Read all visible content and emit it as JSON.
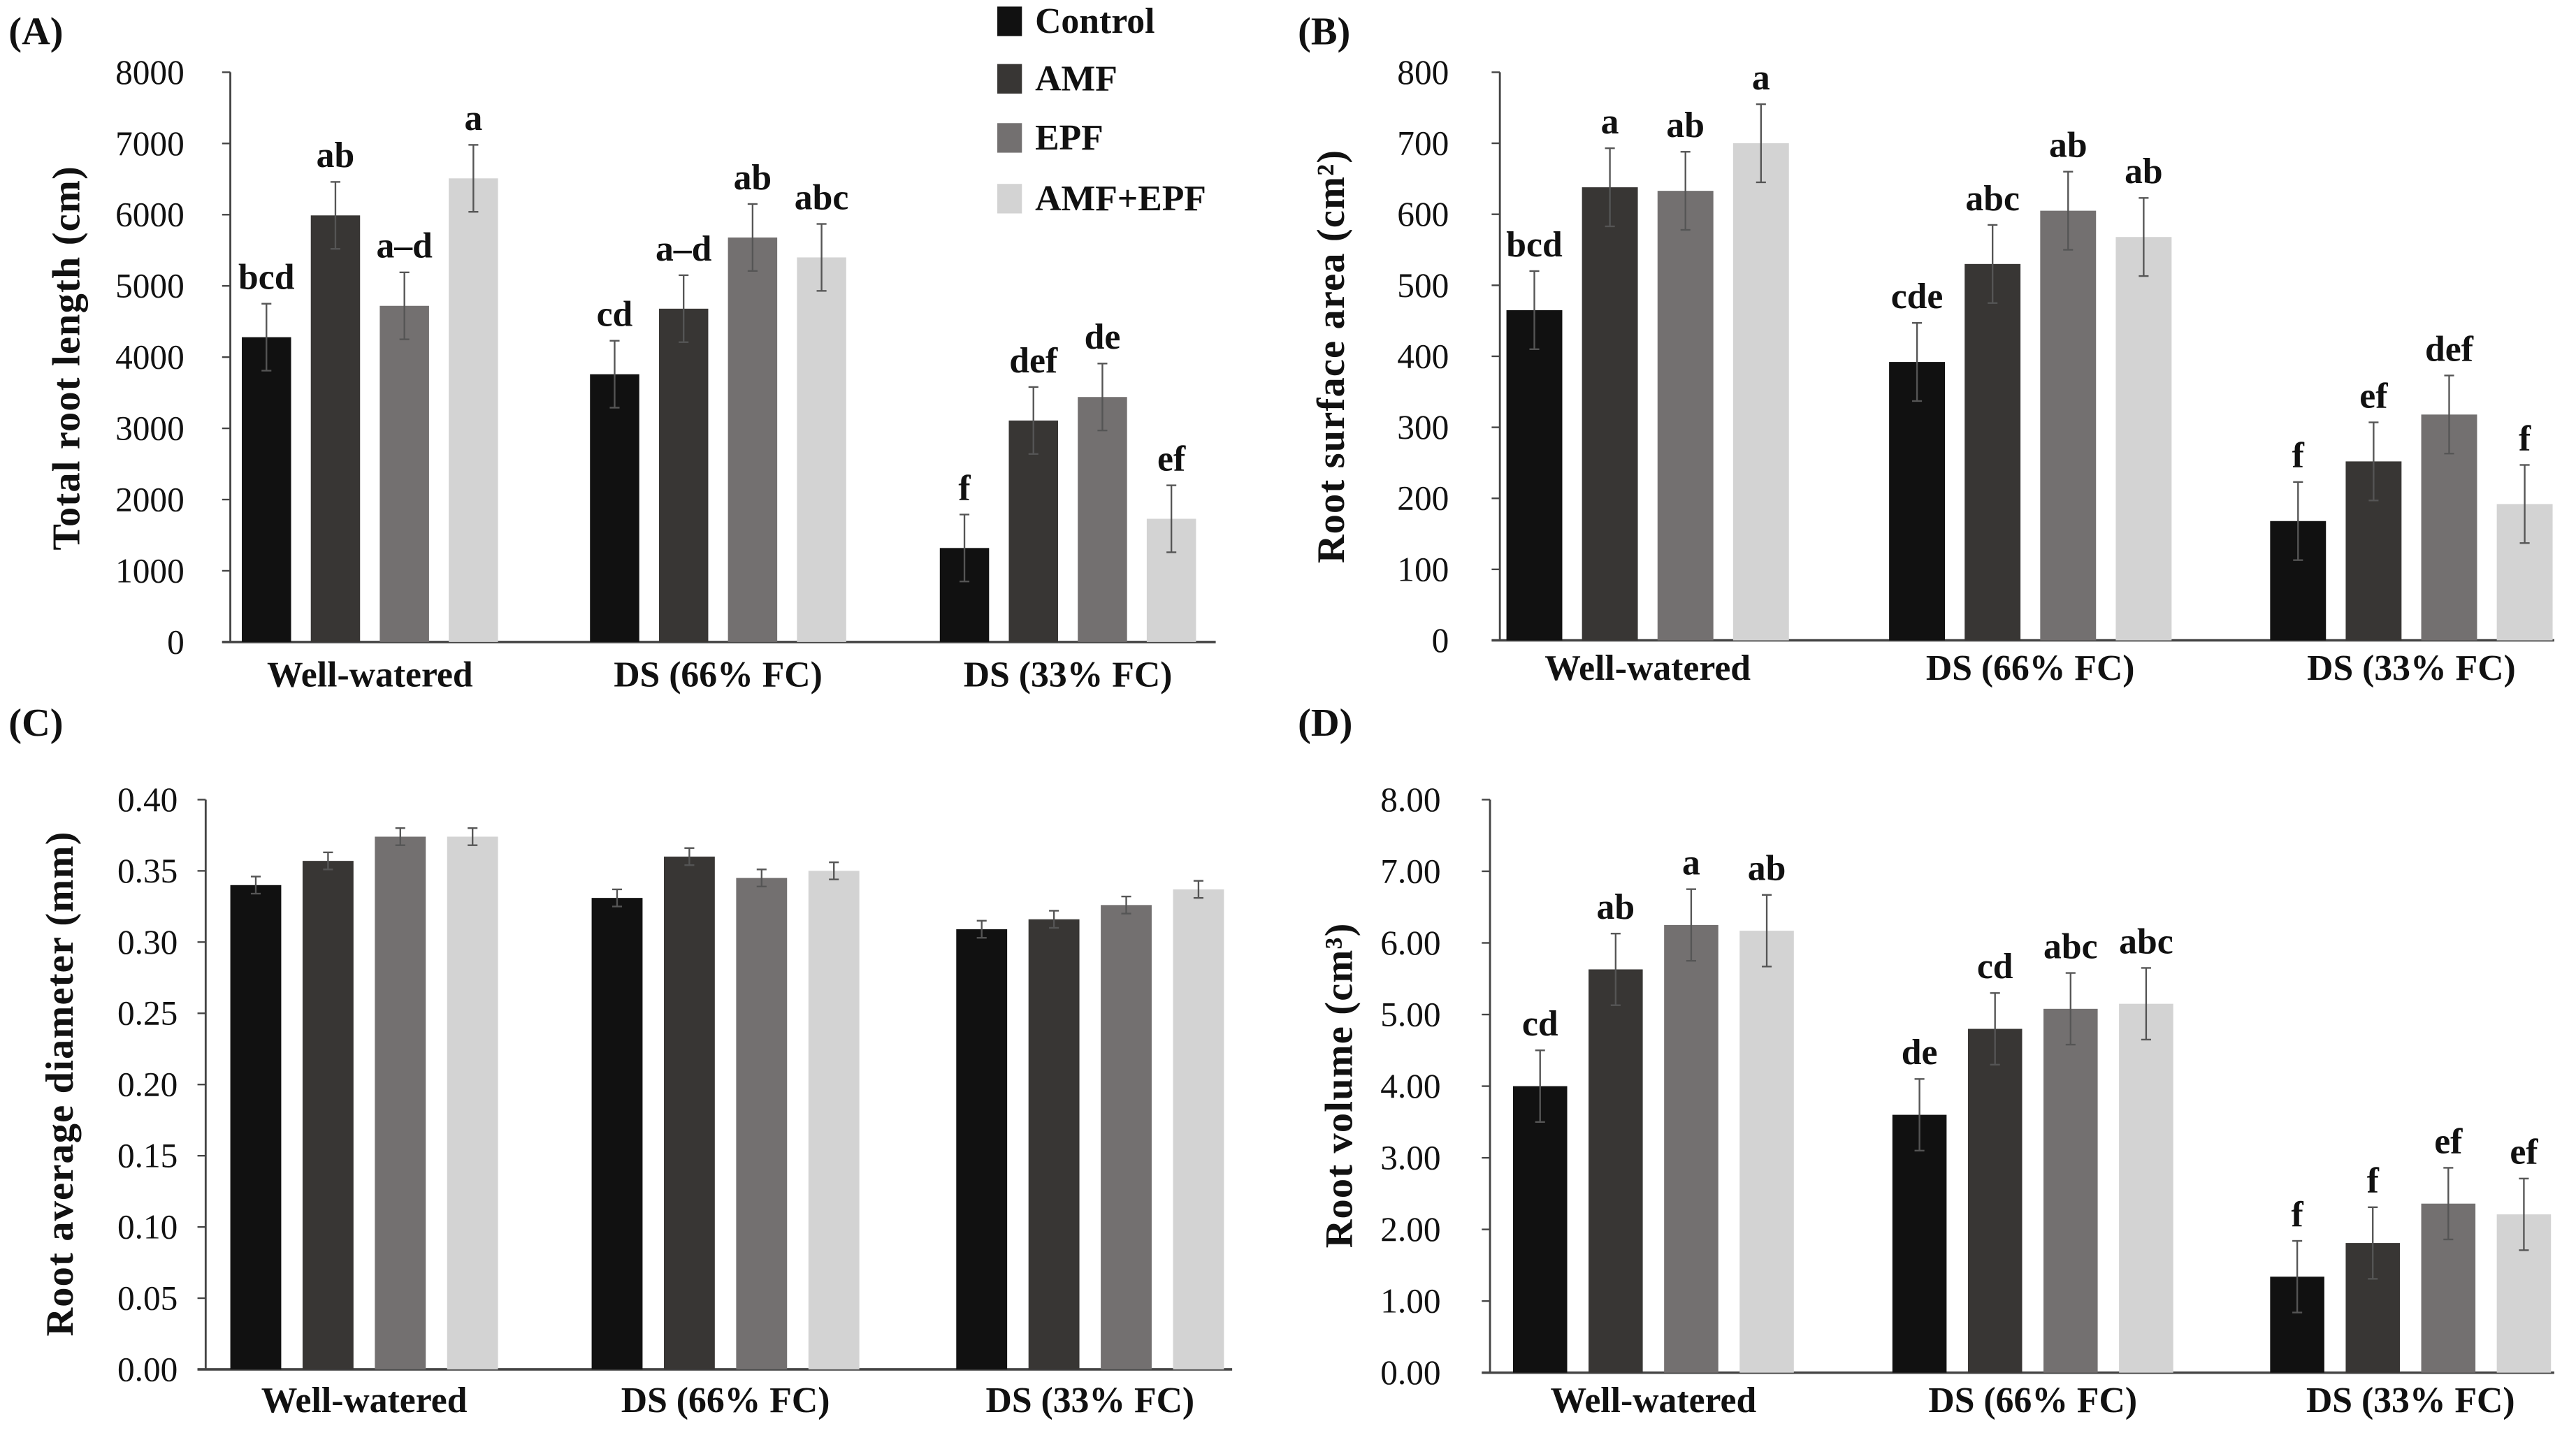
{
  "legend": {
    "items": [
      {
        "label": "Control",
        "color": "#111111"
      },
      {
        "label": "AMF",
        "color": "#383634"
      },
      {
        "label": "EPF",
        "color": "#737070"
      },
      {
        "label": "AMF+EPF",
        "color": "#d3d3d3"
      }
    ],
    "placement": "top-center"
  },
  "chart_data": [
    {
      "panel": "(A)",
      "type": "bar",
      "ylabel": "Total root length (cm)",
      "ylim": [
        0,
        8000
      ],
      "yticks": [
        "0",
        "1000",
        "2000",
        "3000",
        "4000",
        "5000",
        "6000",
        "7000",
        "8000"
      ],
      "categories": [
        "Well-watered",
        "DS (66% FC)",
        "DS (33% FC)"
      ],
      "series": [
        {
          "name": "Control",
          "values": [
            4280,
            3760,
            1320
          ],
          "errors": [
            470,
            470,
            470
          ],
          "letters": [
            "bcd",
            "cd",
            "f"
          ]
        },
        {
          "name": "AMF",
          "values": [
            5990,
            4680,
            3110
          ],
          "errors": [
            470,
            470,
            470
          ],
          "letters": [
            "ab",
            "a–d",
            "def"
          ]
        },
        {
          "name": "EPF",
          "values": [
            4720,
            5680,
            3440
          ],
          "errors": [
            470,
            470,
            470
          ],
          "letters": [
            "a–d",
            "ab",
            "de"
          ]
        },
        {
          "name": "AMF+EPF",
          "values": [
            6510,
            5400,
            1730
          ],
          "errors": [
            470,
            470,
            470
          ],
          "letters": [
            "a",
            "abc",
            "ef"
          ]
        }
      ]
    },
    {
      "panel": "(B)",
      "type": "bar",
      "ylabel": "Root surface area (cm²)",
      "ylim": [
        0,
        800
      ],
      "yticks": [
        "0",
        "100",
        "200",
        "300",
        "400",
        "500",
        "600",
        "700",
        "800"
      ],
      "categories": [
        "Well-watered",
        "DS (66% FC)",
        "DS (33% FC)"
      ],
      "series": [
        {
          "name": "Control",
          "values": [
            465,
            392,
            168
          ],
          "errors": [
            55,
            55,
            55
          ],
          "letters": [
            "bcd",
            "cde",
            "f"
          ]
        },
        {
          "name": "AMF",
          "values": [
            638,
            530,
            252
          ],
          "errors": [
            55,
            55,
            55
          ],
          "letters": [
            "a",
            "abc",
            "ef"
          ]
        },
        {
          "name": "EPF",
          "values": [
            633,
            605,
            318
          ],
          "errors": [
            55,
            55,
            55
          ],
          "letters": [
            "ab",
            "ab",
            "def"
          ]
        },
        {
          "name": "AMF+EPF",
          "values": [
            700,
            568,
            192
          ],
          "errors": [
            55,
            55,
            55
          ],
          "letters": [
            "a",
            "ab",
            "f"
          ]
        }
      ]
    },
    {
      "panel": "(C)",
      "type": "bar",
      "ylabel": "Root average diameter (mm)",
      "ylim": [
        0,
        0.4
      ],
      "yticks": [
        "0.00",
        "0.05",
        "0.10",
        "0.15",
        "0.20",
        "0.25",
        "0.30",
        "0.35",
        "0.40"
      ],
      "categories": [
        "Well-watered",
        "DS (66% FC)",
        "DS (33% FC)"
      ],
      "series": [
        {
          "name": "Control",
          "values": [
            0.34,
            0.331,
            0.309
          ],
          "errors": [
            0.006,
            0.006,
            0.006
          ],
          "letters": [
            "",
            "",
            ""
          ]
        },
        {
          "name": "AMF",
          "values": [
            0.357,
            0.36,
            0.316
          ],
          "errors": [
            0.006,
            0.006,
            0.006
          ],
          "letters": [
            "",
            "",
            ""
          ]
        },
        {
          "name": "EPF",
          "values": [
            0.374,
            0.345,
            0.326
          ],
          "errors": [
            0.006,
            0.006,
            0.006
          ],
          "letters": [
            "",
            "",
            ""
          ]
        },
        {
          "name": "AMF+EPF",
          "values": [
            0.374,
            0.35,
            0.337
          ],
          "errors": [
            0.006,
            0.006,
            0.006
          ],
          "letters": [
            "",
            "",
            ""
          ]
        }
      ]
    },
    {
      "panel": "(D)",
      "type": "bar",
      "ylabel": "Root volume (cm³)",
      "ylim": [
        0,
        8
      ],
      "yticks": [
        "0.00",
        "1.00",
        "2.00",
        "3.00",
        "4.00",
        "5.00",
        "6.00",
        "7.00",
        "8.00"
      ],
      "categories": [
        "Well-watered",
        "DS (66% FC)",
        "DS (33% FC)"
      ],
      "series": [
        {
          "name": "Control",
          "values": [
            4.0,
            3.6,
            1.34
          ],
          "errors": [
            0.5,
            0.5,
            0.5
          ],
          "letters": [
            "cd",
            "de",
            "f"
          ]
        },
        {
          "name": "AMF",
          "values": [
            5.63,
            4.8,
            1.81
          ],
          "errors": [
            0.5,
            0.5,
            0.5
          ],
          "letters": [
            "ab",
            "cd",
            "f"
          ]
        },
        {
          "name": "EPF",
          "values": [
            6.25,
            5.08,
            2.36
          ],
          "errors": [
            0.5,
            0.5,
            0.5
          ],
          "letters": [
            "a",
            "abc",
            "ef"
          ]
        },
        {
          "name": "AMF+EPF",
          "values": [
            6.17,
            5.15,
            2.21
          ],
          "errors": [
            0.5,
            0.5,
            0.5
          ],
          "letters": [
            "ab",
            "abc",
            "ef"
          ]
        }
      ]
    }
  ]
}
